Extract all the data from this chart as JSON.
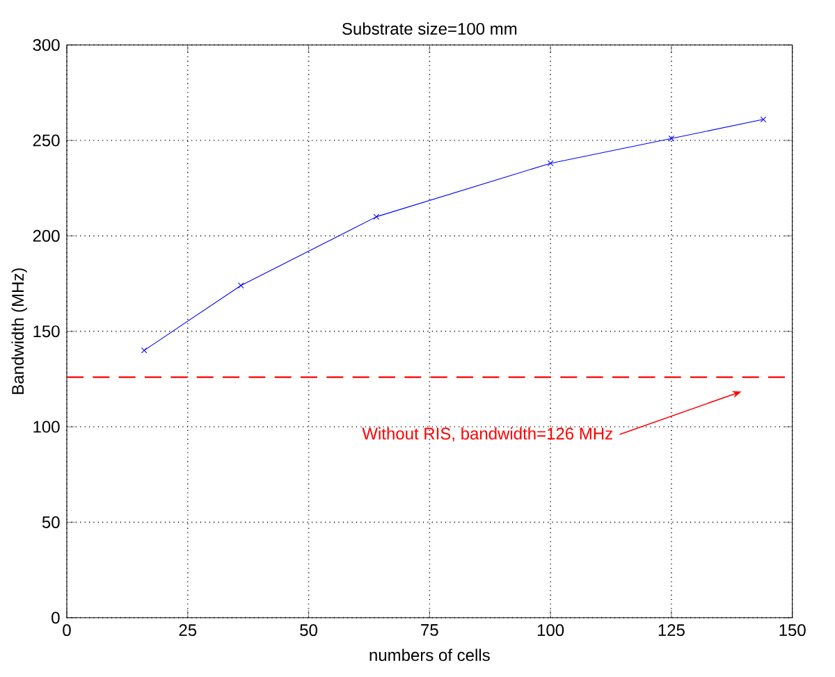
{
  "chart_data": {
    "type": "line",
    "title": "Substrate size=100 mm",
    "xlabel": "numbers of cells",
    "ylabel": "Bandwidth (MHz)",
    "x": [
      16,
      36,
      64,
      100,
      125,
      144
    ],
    "series": [
      {
        "color": "#0000ff",
        "values": [
          140,
          174,
          210,
          238,
          251,
          261
        ]
      }
    ],
    "xlim": [
      0,
      150
    ],
    "xticks": [
      0,
      25,
      50,
      75,
      100,
      125,
      150
    ],
    "ylim": [
      0,
      300
    ],
    "yticks": [
      0,
      50,
      100,
      150,
      200,
      250,
      300
    ],
    "grid": true,
    "marker": "cross",
    "line_style": "solid",
    "ref_lines": [
      {
        "axis": "y",
        "value": 126,
        "label": "Without RIS, bandwidth=126 MHz",
        "color": "#ff0000",
        "line_style": "dashed"
      }
    ]
  }
}
